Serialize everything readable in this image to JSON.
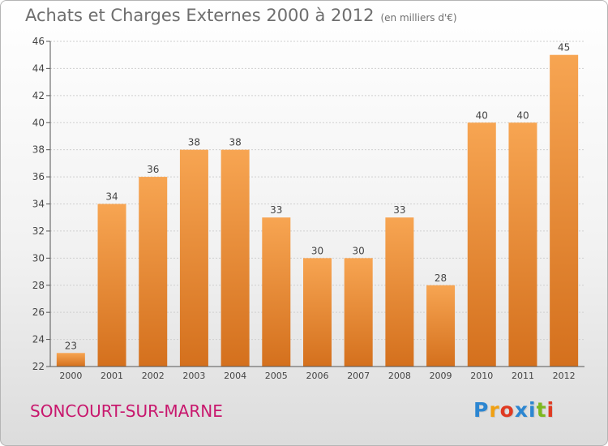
{
  "header": {
    "title": "Achats et Charges Externes 2000 à 2012",
    "subtitle": "(en milliers d'€)"
  },
  "footer": {
    "location": "SONCOURT-SUR-MARNE",
    "brand": {
      "letters": [
        "P",
        "r",
        "o",
        "x",
        "i",
        "t",
        "i"
      ],
      "colors": [
        "#2c86d1",
        "#f0a012",
        "#e03a22",
        "#2c86d1",
        "#2c86d1",
        "#7db81f",
        "#e03a22"
      ]
    }
  },
  "chart_data": {
    "type": "bar",
    "categories": [
      "2000",
      "2001",
      "2002",
      "2003",
      "2004",
      "2005",
      "2006",
      "2007",
      "2008",
      "2009",
      "2010",
      "2011",
      "2012"
    ],
    "values": [
      23,
      34,
      36,
      38,
      38,
      33,
      30,
      30,
      33,
      28,
      40,
      40,
      45
    ],
    "ylim": [
      22,
      46
    ],
    "yticks": [
      22,
      24,
      26,
      28,
      30,
      32,
      34,
      36,
      38,
      40,
      42,
      44,
      46
    ],
    "grid": true,
    "data_labels": true,
    "colors": {
      "bar_top": "#f7a552",
      "bar_bottom": "#d4701d",
      "grid": "#cfcfcf",
      "axis": "#555555"
    }
  }
}
